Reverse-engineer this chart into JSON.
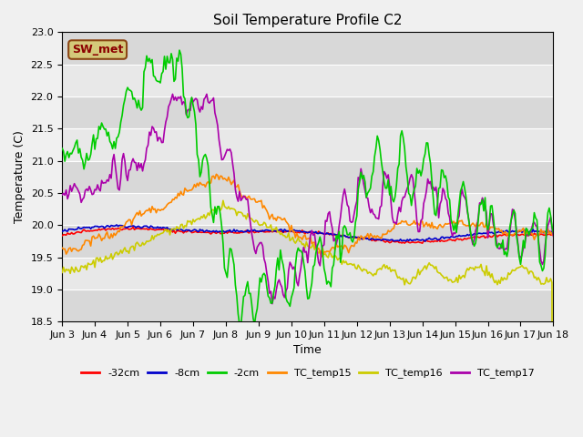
{
  "title": "Soil Temperature Profile C2",
  "xlabel": "Time",
  "ylabel": "Temperature (C)",
  "ylim": [
    18.5,
    23.0
  ],
  "annotation_text": "SW_met",
  "annotation_color": "#8B0000",
  "annotation_bg": "#d4c97a",
  "annotation_border": "#8B4513",
  "series": {
    "-32cm": {
      "color": "#ff0000",
      "lw": 1.2,
      "zorder": 3
    },
    "-8cm": {
      "color": "#0000cc",
      "lw": 1.2,
      "zorder": 3
    },
    "-2cm": {
      "color": "#00cc00",
      "lw": 1.2,
      "zorder": 4
    },
    "TC_temp15": {
      "color": "#ff8800",
      "lw": 1.2,
      "zorder": 3
    },
    "TC_temp16": {
      "color": "#cccc00",
      "lw": 1.2,
      "zorder": 3
    },
    "TC_temp17": {
      "color": "#aa00aa",
      "lw": 1.2,
      "zorder": 3
    }
  },
  "xtick_labels": [
    "Jun 3",
    "Jun 4",
    "Jun 5",
    "Jun 6",
    "Jun 7",
    "Jun 8",
    "Jun 9",
    "Jun 10",
    "Jun 11",
    "Jun 12",
    "Jun 13",
    "Jun 14",
    "Jun 15",
    "Jun 16",
    "Jun 17",
    "Jun 18"
  ],
  "bg_color": "#e8e8e8",
  "grid_color": "#ffffff",
  "legend_colors": [
    "#ff0000",
    "#0000cc",
    "#00cc00",
    "#ff8800",
    "#cccc00",
    "#aa00aa"
  ],
  "legend_labels": [
    "-32cm",
    "-8cm",
    "-2cm",
    "TC_temp15",
    "TC_temp16",
    "TC_temp17"
  ]
}
